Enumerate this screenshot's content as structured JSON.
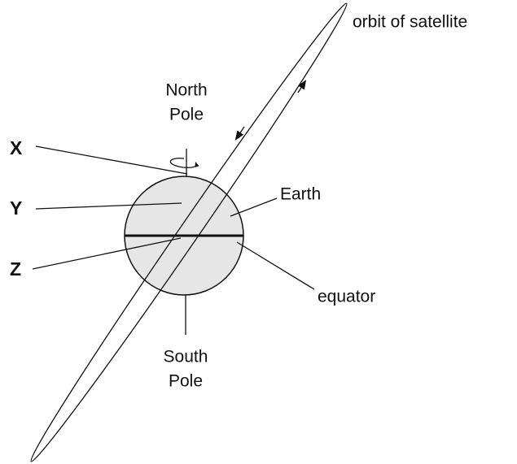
{
  "labels": {
    "orbit": "orbit of satellite",
    "north": [
      "North",
      "Pole"
    ],
    "south": [
      "South",
      "Pole"
    ],
    "earth": "Earth",
    "equator": "equator",
    "x": "X",
    "y": "Y",
    "z": "Z"
  }
}
